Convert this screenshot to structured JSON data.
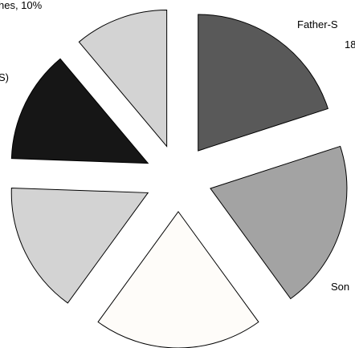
{
  "chart_data": {
    "type": "pie",
    "exploded": true,
    "slices": [
      {
        "label": "Father-S",
        "value": 18,
        "display": "Father-S",
        "display2": "18",
        "color": "#595959"
      },
      {
        "label": "Son",
        "value": 18,
        "display": "Son",
        "display2": "",
        "color": "#a3a3a3"
      },
      {
        "label": "",
        "value": 18,
        "display": "",
        "display2": "",
        "color": "#fefcf9"
      },
      {
        "label": "",
        "value": 14,
        "display": "",
        "display2": "",
        "color": "#d3d3d3"
      },
      {
        "label": "",
        "value": 12,
        "display": "S)",
        "display2": "",
        "color": "#161616"
      },
      {
        "label": "",
        "value": 10,
        "display": "hes, 10%",
        "display2": "",
        "color": "#d3d3d3"
      }
    ]
  }
}
